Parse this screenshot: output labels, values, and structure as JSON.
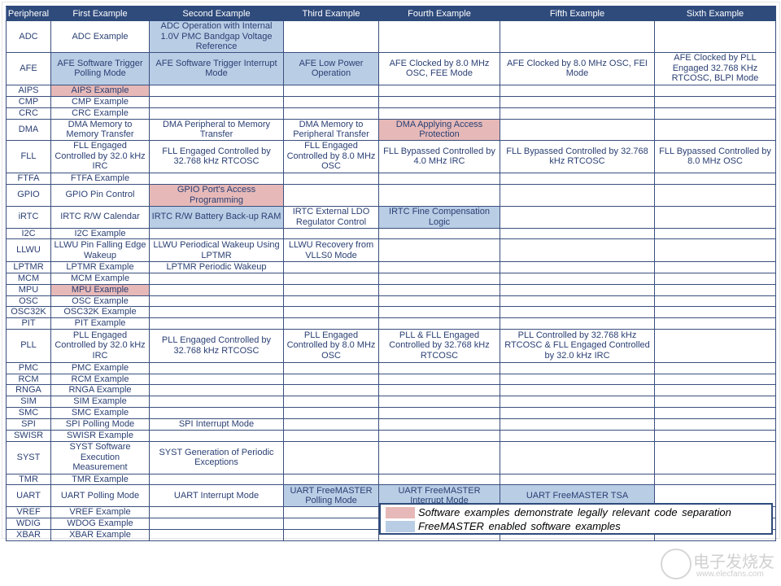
{
  "colors": {
    "header": "#2f4b7c",
    "pink": "#e6b9b8",
    "blue": "#b9cde5",
    "text": "#2a3f73"
  },
  "headers": [
    "Peripheral",
    "First Example",
    "Second Example",
    "Third Example",
    "Fourth Example",
    "Fifth Example",
    "Sixth Example"
  ],
  "rows": [
    {
      "p": "ADC",
      "c": [
        {
          "t": "ADC Example"
        },
        {
          "t": "ADC Operation with Internal 1.0V PMC Bandgap Voltage Reference",
          "hl": "blue"
        },
        {
          "t": ""
        },
        {
          "t": ""
        },
        {
          "t": ""
        },
        {
          "t": ""
        }
      ]
    },
    {
      "p": "AFE",
      "c": [
        {
          "t": "AFE Software Trigger Polling Mode",
          "hl": "blue"
        },
        {
          "t": "AFE Software Trigger Interrupt Mode",
          "hl": "blue"
        },
        {
          "t": "AFE Low Power Operation",
          "hl": "blue"
        },
        {
          "t": "AFE Clocked by 8.0 MHz OSC, FEE Mode"
        },
        {
          "t": "AFE Clocked by 8.0 MHz OSC, FEI Mode"
        },
        {
          "t": "AFE Clocked by PLL Engaged 32.768 KHz RTCOSC, BLPI Mode"
        }
      ]
    },
    {
      "p": "AIPS",
      "c": [
        {
          "t": "AIPS Example",
          "hl": "pink"
        }
      ]
    },
    {
      "p": "CMP",
      "c": [
        {
          "t": "CMP Example"
        }
      ]
    },
    {
      "p": "CRC",
      "c": [
        {
          "t": "CRC Example"
        }
      ]
    },
    {
      "p": "DMA",
      "c": [
        {
          "t": "DMA Memory to Memory Transfer"
        },
        {
          "t": "DMA Peripheral to Memory Transfer"
        },
        {
          "t": "DMA Memory to Peripheral Transfer"
        },
        {
          "t": "DMA Applying Access Protection",
          "hl": "pink"
        }
      ]
    },
    {
      "p": "FLL",
      "c": [
        {
          "t": "FLL Engaged Controlled by 32.0 kHz IRC"
        },
        {
          "t": "FLL Engaged Controlled by 32.768 kHz RTCOSC"
        },
        {
          "t": "FLL Engaged Controlled by 8.0 MHz OSC"
        },
        {
          "t": "FLL Bypassed Controlled by 4.0 MHz IRC"
        },
        {
          "t": "FLL Bypassed Controlled by 32.768 kHz RTCOSC"
        },
        {
          "t": "FLL Bypassed Controlled by 8.0 MHz OSC"
        }
      ]
    },
    {
      "p": "FTFA",
      "c": [
        {
          "t": "FTFA Example"
        }
      ]
    },
    {
      "p": "GPIO",
      "c": [
        {
          "t": "GPIO Pin Control"
        },
        {
          "t": "GPIO Port's Access Programming",
          "hl": "pink"
        }
      ]
    },
    {
      "p": "iRTC",
      "c": [
        {
          "t": "IRTC R/W Calendar"
        },
        {
          "t": "IRTC R/W Battery Back-up RAM",
          "hl": "blue"
        },
        {
          "t": "IRTC External LDO Regulator Control"
        },
        {
          "t": "IRTC Fine Compensation Logic",
          "hl": "blue"
        }
      ]
    },
    {
      "p": "I2C",
      "c": [
        {
          "t": "I2C Example"
        }
      ]
    },
    {
      "p": "LLWU",
      "c": [
        {
          "t": "LLWU Pin Falling Edge Wakeup"
        },
        {
          "t": "LLWU Periodical Wakeup Using LPTMR"
        },
        {
          "t": "LLWU Recovery from VLLS0 Mode"
        }
      ]
    },
    {
      "p": "LPTMR",
      "c": [
        {
          "t": "LPTMR Example"
        },
        {
          "t": "LPTMR Periodic Wakeup"
        }
      ]
    },
    {
      "p": "MCM",
      "c": [
        {
          "t": "MCM Example"
        }
      ]
    },
    {
      "p": "MPU",
      "c": [
        {
          "t": "MPU Example",
          "hl": "pink"
        }
      ]
    },
    {
      "p": "OSC",
      "c": [
        {
          "t": "OSC Example"
        }
      ]
    },
    {
      "p": "OSC32K",
      "c": [
        {
          "t": "OSC32K Example"
        }
      ]
    },
    {
      "p": "PIT",
      "c": [
        {
          "t": "PIT Example"
        }
      ]
    },
    {
      "p": "PLL",
      "c": [
        {
          "t": "PLL Engaged Controlled by 32.0 kHz IRC"
        },
        {
          "t": "PLL Engaged Controlled by 32.768 kHz RTCOSC"
        },
        {
          "t": "PLL Engaged Controlled by 8.0 MHz OSC"
        },
        {
          "t": "PLL & FLL Engaged Controlled by 32.768 kHz RTCOSC"
        },
        {
          "t": "PLL Controlled by 32.768 kHz RTCOSC & FLL Engaged Controlled by 32.0 kHz IRC"
        }
      ]
    },
    {
      "p": "PMC",
      "c": [
        {
          "t": "PMC Example"
        }
      ]
    },
    {
      "p": "RCM",
      "c": [
        {
          "t": "RCM Example"
        }
      ]
    },
    {
      "p": "RNGA",
      "c": [
        {
          "t": "RNGA Example"
        }
      ]
    },
    {
      "p": "SIM",
      "c": [
        {
          "t": "SIM Example"
        }
      ]
    },
    {
      "p": "SMC",
      "c": [
        {
          "t": "SMC Example"
        }
      ]
    },
    {
      "p": "SPI",
      "c": [
        {
          "t": "SPI Polling Mode"
        },
        {
          "t": "SPI Interrupt Mode"
        }
      ]
    },
    {
      "p": "SWISR",
      "c": [
        {
          "t": "SWISR Example"
        }
      ]
    },
    {
      "p": "SYST",
      "c": [
        {
          "t": "SYST Software Execution Measurement"
        },
        {
          "t": "SYST Generation of Periodic Exceptions"
        }
      ]
    },
    {
      "p": "TMR",
      "c": [
        {
          "t": "TMR Example"
        }
      ]
    },
    {
      "p": "UART",
      "c": [
        {
          "t": "UART Polling Mode"
        },
        {
          "t": "UART Interrupt Mode"
        },
        {
          "t": "UART FreeMASTER Polling Mode",
          "hl": "blue"
        },
        {
          "t": "UART FreeMASTER Interrupt Mode",
          "hl": "blue"
        },
        {
          "t": "UART FreeMASTER TSA",
          "hl": "blue"
        },
        {
          "t": ""
        }
      ]
    },
    {
      "p": "VREF",
      "c": [
        {
          "t": "VREF Example"
        }
      ]
    },
    {
      "p": "WDIG",
      "c": [
        {
          "t": "WDOG Example"
        }
      ]
    },
    {
      "p": "XBAR",
      "c": [
        {
          "t": "XBAR Example"
        }
      ]
    }
  ],
  "legend": {
    "pink_label": "Software examples demonstrate  legally relevant  code  separation",
    "blue_label": "FreeMASTER enabled  software examples"
  },
  "watermark": {
    "logo_text": "电子发烧友",
    "url": "www.elecfans.com"
  }
}
